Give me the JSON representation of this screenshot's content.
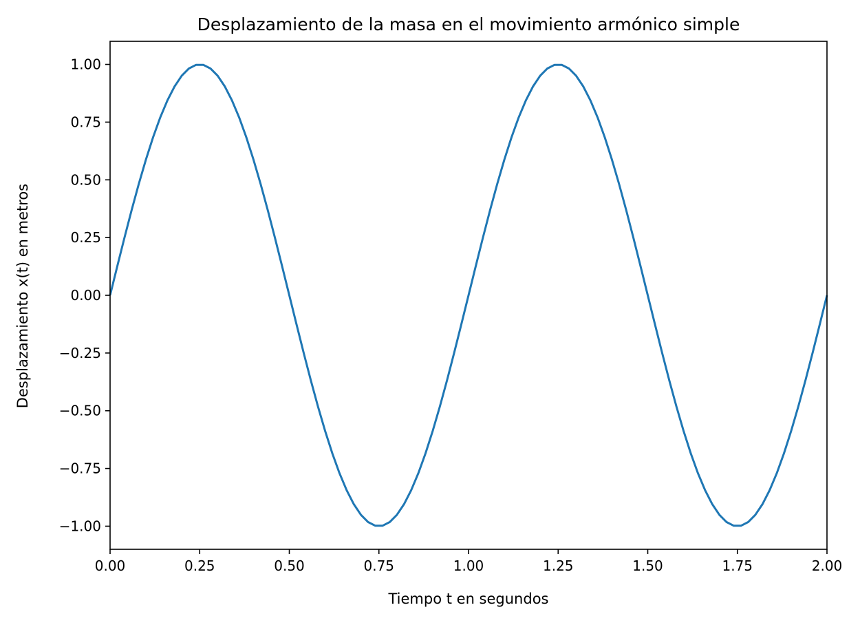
{
  "chart_data": {
    "type": "line",
    "title": "Desplazamiento de la masa en el movimiento armónico simple",
    "xlabel": "Tiempo t en segundos",
    "ylabel": "Desplazamiento x(t) en metros",
    "xlim": [
      0,
      2
    ],
    "ylim": [
      -1.1,
      1.1
    ],
    "grid": false,
    "x_ticks": [
      0.0,
      0.25,
      0.5,
      0.75,
      1.0,
      1.25,
      1.5,
      1.75,
      2.0
    ],
    "x_tick_labels": [
      "0.00",
      "0.25",
      "0.50",
      "0.75",
      "1.00",
      "1.25",
      "1.50",
      "1.75",
      "2.00"
    ],
    "y_ticks": [
      1.0,
      0.75,
      0.5,
      0.25,
      0.0,
      -0.25,
      -0.5,
      -0.75,
      -1.0
    ],
    "y_tick_labels": [
      "1.00",
      "0.75",
      "0.50",
      "0.25",
      "0.00",
      "−0.25",
      "−0.50",
      "−0.75",
      "−1.00"
    ],
    "series": [
      {
        "color": "#1f77b4",
        "x": [
          0.0,
          0.02,
          0.04,
          0.06,
          0.08,
          0.1,
          0.12,
          0.14,
          0.16,
          0.18,
          0.2,
          0.22,
          0.24,
          0.26,
          0.28,
          0.3,
          0.32,
          0.34,
          0.36,
          0.38,
          0.4,
          0.42,
          0.44,
          0.46,
          0.48,
          0.5,
          0.52,
          0.54,
          0.56,
          0.58,
          0.6,
          0.62,
          0.64,
          0.66,
          0.68,
          0.7,
          0.72,
          0.74,
          0.76,
          0.78,
          0.8,
          0.82,
          0.84,
          0.86,
          0.88,
          0.9,
          0.92,
          0.94,
          0.96,
          0.98,
          1.0,
          1.02,
          1.04,
          1.06,
          1.08,
          1.1,
          1.12,
          1.14,
          1.16,
          1.18,
          1.2,
          1.22,
          1.24,
          1.26,
          1.28,
          1.3,
          1.32,
          1.34,
          1.36,
          1.38,
          1.4,
          1.42,
          1.44,
          1.46,
          1.48,
          1.5,
          1.52,
          1.54,
          1.56,
          1.58,
          1.6,
          1.62,
          1.64,
          1.66,
          1.68,
          1.7,
          1.72,
          1.74,
          1.76,
          1.78,
          1.8,
          1.82,
          1.84,
          1.86,
          1.88,
          1.9,
          1.92,
          1.94,
          1.96,
          1.98,
          2.0
        ],
        "y": [
          0.0,
          0.1253,
          0.2487,
          0.3681,
          0.4818,
          0.5878,
          0.6845,
          0.7705,
          0.8443,
          0.9048,
          0.9511,
          0.9823,
          0.998,
          0.998,
          0.9823,
          0.9511,
          0.9048,
          0.8443,
          0.7705,
          0.6845,
          0.5878,
          0.4818,
          0.3681,
          0.2487,
          0.1253,
          0.0,
          -0.1253,
          -0.2487,
          -0.3681,
          -0.4818,
          -0.5878,
          -0.6845,
          -0.7705,
          -0.8443,
          -0.9048,
          -0.9511,
          -0.9823,
          -0.998,
          -0.998,
          -0.9823,
          -0.9511,
          -0.9048,
          -0.8443,
          -0.7705,
          -0.6845,
          -0.5878,
          -0.4818,
          -0.3681,
          -0.2487,
          -0.1253,
          0.0,
          0.1253,
          0.2487,
          0.3681,
          0.4818,
          0.5878,
          0.6845,
          0.7705,
          0.8443,
          0.9048,
          0.9511,
          0.9823,
          0.998,
          0.998,
          0.9823,
          0.9511,
          0.9048,
          0.8443,
          0.7705,
          0.6845,
          0.5878,
          0.4818,
          0.3681,
          0.2487,
          0.1253,
          0.0,
          -0.1253,
          -0.2487,
          -0.3681,
          -0.4818,
          -0.5878,
          -0.6845,
          -0.7705,
          -0.8443,
          -0.9048,
          -0.9511,
          -0.9823,
          -0.998,
          -0.998,
          -0.9823,
          -0.9511,
          -0.9048,
          -0.8443,
          -0.7705,
          -0.6845,
          -0.5878,
          -0.4818,
          -0.3681,
          -0.2487,
          -0.1253,
          0.0
        ]
      }
    ]
  }
}
